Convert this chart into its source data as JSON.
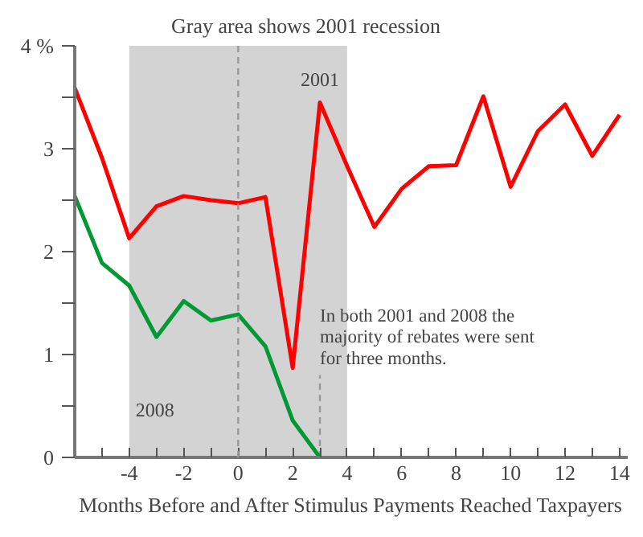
{
  "chart_data": {
    "type": "line",
    "title": "Gray area shows 2001 recession",
    "xlabel": "Months Before and After Stimulus Payments Reached Taxpayers",
    "x": [
      -6,
      -5,
      -4,
      -3,
      -2,
      -1,
      0,
      1,
      2,
      3,
      4,
      5,
      6,
      7,
      8,
      9,
      10,
      11,
      12,
      13,
      14
    ],
    "series": [
      {
        "color": "#ff0000",
        "values": [
          3.59,
          2.91,
          2.13,
          2.44,
          2.54,
          2.5,
          2.47,
          2.53,
          0.87,
          3.45,
          2.83,
          2.24,
          2.61,
          2.83,
          2.84,
          3.51,
          2.63,
          3.17,
          3.43,
          2.93,
          3.33
        ]
      },
      {
        "color": "#009933",
        "values": [
          2.54,
          1.89,
          1.67,
          1.17,
          1.52,
          1.33,
          1.39,
          1.08,
          0.36,
          0,
          null,
          null,
          null,
          null,
          null,
          null,
          null,
          null,
          null,
          null,
          null
        ]
      }
    ],
    "xlim": [
      -6,
      14.3
    ],
    "ylim": [
      0,
      4
    ],
    "xticks": [
      {
        "value": -6,
        "label": null
      },
      {
        "value": -5,
        "label": null
      },
      -4,
      {
        "value": -3,
        "label": null
      },
      -2,
      {
        "value": -1,
        "label": null
      },
      0,
      {
        "value": 1,
        "label": null
      },
      2,
      {
        "value": 3,
        "label": null
      },
      4,
      {
        "value": 5,
        "label": null
      },
      6,
      {
        "value": 7,
        "label": null
      },
      8,
      {
        "value": 9,
        "label": null
      },
      10,
      {
        "value": 11,
        "label": null
      },
      12,
      {
        "value": 13,
        "label": null
      },
      14
    ],
    "yticks": [
      0,
      {
        "value": 0.5,
        "label": null
      },
      1,
      {
        "value": 1.5,
        "label": null
      },
      2,
      {
        "value": 2.5,
        "label": null
      },
      3,
      {
        "value": 3.5,
        "label": null
      },
      {
        "value": 4,
        "label": "4 %"
      }
    ],
    "bands": [
      {
        "axis": "x",
        "from": -4,
        "to": 4,
        "color": "#d3d3d3"
      }
    ],
    "ref_lines": [
      {
        "axis": "x",
        "value": 0,
        "color": "#999999",
        "line_style": "dashed"
      },
      {
        "axis": "x",
        "value": 3,
        "color": "#999999",
        "line_style": "dashed",
        "label": "In both 2001 and 2008 the\nmajority of rebates were sent\nfor three months."
      }
    ],
    "annotations": [
      {
        "text": "2001",
        "x": 3,
        "y": 3.45
      },
      "2008"
    ],
    "grid": false,
    "marker": "none",
    "line_style": "solid"
  }
}
